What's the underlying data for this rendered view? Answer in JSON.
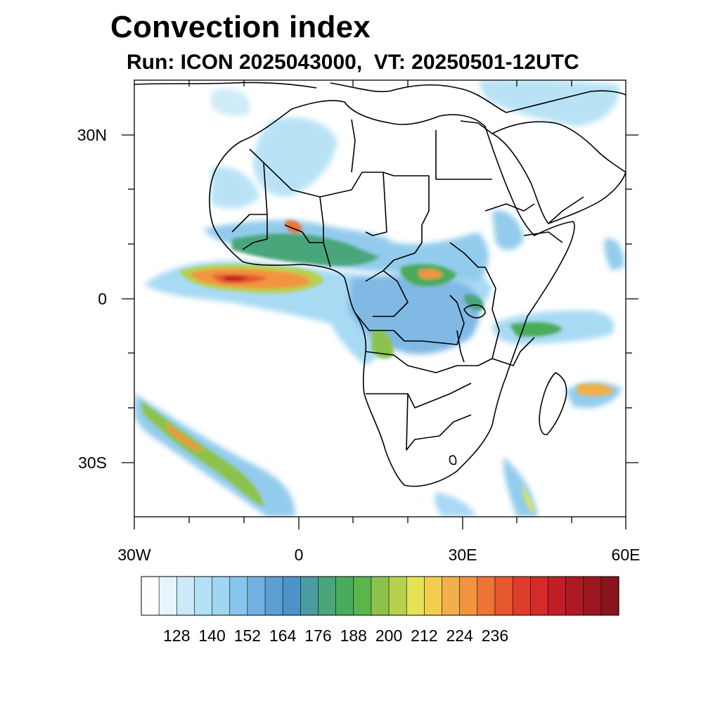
{
  "title": "Convection index",
  "subtitle": "Run: ICON 2025043000,  VT: 20250501-12UTC",
  "axes": {
    "lat_labels": [
      "30N",
      "0",
      "30S"
    ],
    "lon_labels": [
      "30W",
      "0",
      "30E",
      "60E"
    ],
    "lon_range": [
      -30,
      60
    ],
    "lat_range": [
      -40,
      40
    ]
  },
  "colorbar": {
    "labels": [
      "128",
      "140",
      "152",
      "164",
      "176",
      "188",
      "200",
      "212",
      "224",
      "236"
    ],
    "colors": [
      "#ffffff",
      "#e6f4fb",
      "#cbe9f8",
      "#b2e0f5",
      "#9fd6f2",
      "#87c6ea",
      "#72b2e2",
      "#5b9fd4",
      "#4d93c8",
      "#4a9ca0",
      "#4aa57a",
      "#49ab5b",
      "#5ab54b",
      "#8cc24c",
      "#b6d24d",
      "#e5e355",
      "#f4cc4f",
      "#f2b04a",
      "#f2943f",
      "#ec7435",
      "#e6562f",
      "#dd3e2c",
      "#d32a2a",
      "#c21e28",
      "#ae1a24",
      "#9a1720",
      "#8a141c"
    ]
  }
}
